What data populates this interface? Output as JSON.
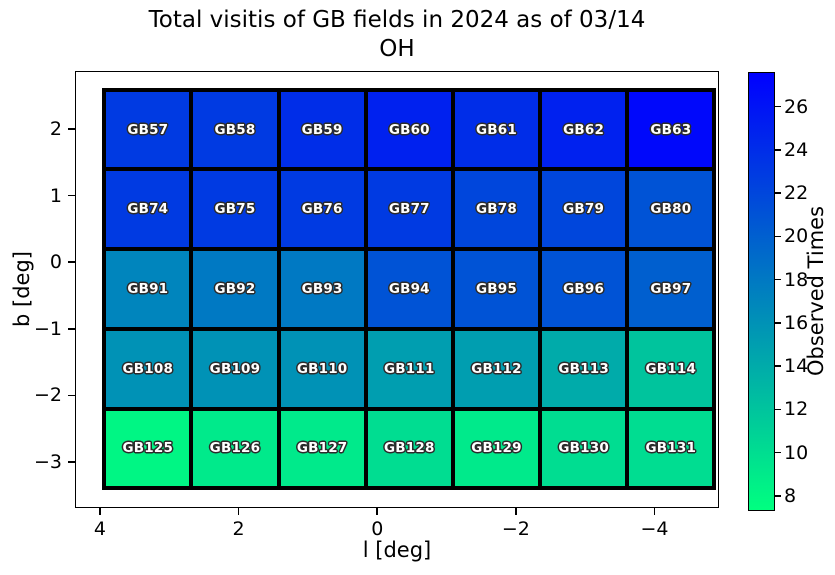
{
  "chart_data": {
    "type": "heatmap",
    "title": "Total visitis of GB fields in 2024 as of 03/14",
    "subtitle": "OH",
    "xlabel": "l [deg]",
    "ylabel": "b [deg]",
    "x_axis_reversed": true,
    "xlim": [
      4.36,
      -4.93
    ],
    "ylim": [
      -3.69,
      2.87
    ],
    "xticks": [
      4,
      2,
      0,
      -2,
      -4
    ],
    "yticks": [
      2,
      1,
      0,
      -1,
      -2,
      -3
    ],
    "grid": {
      "columns": 7,
      "rows": 5,
      "l_extent": [
        3.96,
        -4.9
      ],
      "b_extent": [
        2.61,
        -3.43
      ],
      "edge_color": "#000000",
      "label_text_color": "#ffffff",
      "label_outline_color": "#2b2b2b"
    },
    "colorbar": {
      "label": "Observed Times",
      "ticks": [
        26,
        24,
        22,
        20,
        18,
        16,
        14,
        12,
        10,
        8
      ],
      "vmin": 7.3,
      "vmax": 27.6,
      "colormap": "winter_r",
      "color_low": "#00ff80",
      "color_high": "#0000ff"
    },
    "rows": [
      {
        "b_center": 2.0,
        "cells": [
          {
            "label": "GB57",
            "value": 23
          },
          {
            "label": "GB58",
            "value": 23
          },
          {
            "label": "GB59",
            "value": 24
          },
          {
            "label": "GB60",
            "value": 25
          },
          {
            "label": "GB61",
            "value": 24
          },
          {
            "label": "GB62",
            "value": 25
          },
          {
            "label": "GB63",
            "value": 27
          }
        ]
      },
      {
        "b_center": 0.8,
        "cells": [
          {
            "label": "GB74",
            "value": 23
          },
          {
            "label": "GB75",
            "value": 23
          },
          {
            "label": "GB76",
            "value": 23
          },
          {
            "label": "GB77",
            "value": 23
          },
          {
            "label": "GB78",
            "value": 22
          },
          {
            "label": "GB79",
            "value": 22
          },
          {
            "label": "GB80",
            "value": 21
          }
        ]
      },
      {
        "b_center": -0.4,
        "cells": [
          {
            "label": "GB91",
            "value": 17
          },
          {
            "label": "GB92",
            "value": 18
          },
          {
            "label": "GB93",
            "value": 18
          },
          {
            "label": "GB94",
            "value": 21
          },
          {
            "label": "GB95",
            "value": 21
          },
          {
            "label": "GB96",
            "value": 21
          },
          {
            "label": "GB97",
            "value": 20
          }
        ]
      },
      {
        "b_center": -1.6,
        "cells": [
          {
            "label": "GB108",
            "value": 16
          },
          {
            "label": "GB109",
            "value": 16
          },
          {
            "label": "GB110",
            "value": 16
          },
          {
            "label": "GB111",
            "value": 15
          },
          {
            "label": "GB112",
            "value": 15
          },
          {
            "label": "GB113",
            "value": 14
          },
          {
            "label": "GB114",
            "value": 12
          }
        ]
      },
      {
        "b_center": -2.8,
        "cells": [
          {
            "label": "GB125",
            "value": 8
          },
          {
            "label": "GB126",
            "value": 9
          },
          {
            "label": "GB127",
            "value": 9
          },
          {
            "label": "GB128",
            "value": 10
          },
          {
            "label": "GB129",
            "value": 9
          },
          {
            "label": "GB130",
            "value": 10
          },
          {
            "label": "GB131",
            "value": 10
          }
        ]
      }
    ]
  }
}
